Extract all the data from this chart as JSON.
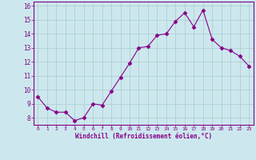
{
  "x": [
    0,
    1,
    2,
    3,
    4,
    5,
    6,
    7,
    8,
    9,
    10,
    11,
    12,
    13,
    14,
    15,
    16,
    17,
    18,
    19,
    20,
    21,
    22,
    23
  ],
  "y": [
    9.5,
    8.7,
    8.4,
    8.4,
    7.8,
    8.0,
    9.0,
    8.9,
    9.9,
    10.9,
    11.9,
    13.0,
    13.1,
    13.9,
    14.0,
    14.9,
    15.5,
    14.5,
    15.7,
    13.6,
    13.0,
    12.8,
    12.4,
    11.7
  ],
  "line_color": "#880088",
  "marker": "D",
  "marker_size": 2.5,
  "bg_color": "#cce8ee",
  "grid_color": "#aacccc",
  "xlabel": "Windchill (Refroidissement éolien,°C)",
  "ylabel_ticks": [
    8,
    9,
    10,
    11,
    12,
    13,
    14,
    15,
    16
  ],
  "xlim": [
    -0.5,
    23.5
  ],
  "ylim": [
    7.5,
    16.3
  ],
  "label_color": "#880088",
  "tick_color": "#880088",
  "font_family": "monospace"
}
